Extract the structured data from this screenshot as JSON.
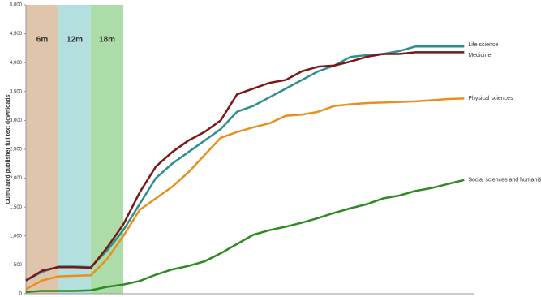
{
  "chart_data": {
    "type": "line",
    "y_label": "Cumulated publisher full text downloads",
    "x": [
      0,
      3,
      6,
      9,
      12,
      15,
      18,
      21,
      24,
      27,
      30,
      33,
      36,
      39,
      42,
      45,
      48,
      51,
      54,
      57,
      60,
      63,
      66,
      69,
      72,
      75,
      78,
      81
    ],
    "xlim": [
      0,
      82
    ],
    "ylim": [
      0,
      5000
    ],
    "yticks": [
      0,
      500,
      {
        "value": 1000,
        "label": "1,000"
      },
      {
        "value": 1500,
        "label": "1,500"
      },
      {
        "value": 2000,
        "label": "2,000"
      },
      {
        "value": 2500,
        "label": "2,500"
      },
      {
        "value": 3000,
        "label": "3,000"
      },
      {
        "value": 3500,
        "label": "3,500"
      },
      {
        "value": 4000,
        "label": "4,000"
      },
      {
        "value": 4500,
        "label": "4,500"
      },
      {
        "value": 5000,
        "label": "5,000"
      }
    ],
    "bands": [
      {
        "label": "6m",
        "start": 0,
        "end": 6,
        "color": "#dcbfa3"
      },
      {
        "label": "12m",
        "start": 6,
        "end": 12,
        "color": "#acdcdc"
      },
      {
        "label": "18m",
        "start": 12,
        "end": 18,
        "color": "#a3d89d"
      }
    ],
    "series": [
      {
        "name": "Life science",
        "color": "#2e8f8f",
        "values": [
          230,
          380,
          470,
          470,
          460,
          750,
          1100,
          1550,
          2000,
          2250,
          2450,
          2650,
          2850,
          3150,
          3250,
          3400,
          3550,
          3700,
          3850,
          3950,
          4100,
          4130,
          4150,
          4200,
          4280,
          4280,
          4280,
          4280
        ]
      },
      {
        "name": "Medicine",
        "color": "#7a1717",
        "values": [
          230,
          400,
          460,
          460,
          450,
          800,
          1200,
          1750,
          2200,
          2450,
          2650,
          2800,
          3000,
          3450,
          3550,
          3650,
          3700,
          3850,
          3930,
          3950,
          4020,
          4100,
          4150,
          4150,
          4180,
          4180,
          4180,
          4180
        ]
      },
      {
        "name": "Physical sciences",
        "color": "#e8901f",
        "values": [
          80,
          230,
          300,
          310,
          320,
          600,
          1000,
          1450,
          1650,
          1850,
          2100,
          2400,
          2700,
          2800,
          2880,
          2950,
          3080,
          3100,
          3150,
          3250,
          3280,
          3300,
          3310,
          3320,
          3330,
          3350,
          3370,
          3380
        ]
      },
      {
        "name": "Social sciences and humanities",
        "color": "#2f8a22",
        "values": [
          30,
          50,
          50,
          50,
          60,
          120,
          160,
          220,
          330,
          420,
          480,
          560,
          700,
          860,
          1020,
          1100,
          1160,
          1230,
          1310,
          1400,
          1480,
          1550,
          1650,
          1700,
          1780,
          1830,
          1900,
          1970
        ]
      }
    ]
  }
}
